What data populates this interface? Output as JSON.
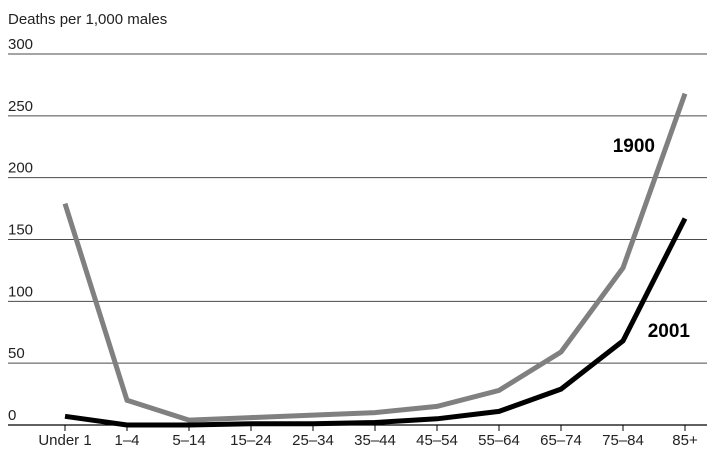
{
  "chart_data": {
    "type": "line",
    "ylabel": "Deaths per 1,000 males",
    "xlabel": "",
    "ylim": [
      0,
      300
    ],
    "yticks": [
      0,
      50,
      100,
      150,
      200,
      250,
      300
    ],
    "categories": [
      "Under 1",
      "1–4",
      "5–14",
      "15–24",
      "25–34",
      "35–44",
      "45–54",
      "55–64",
      "65–74",
      "75–84",
      "85+"
    ],
    "grid": true,
    "series": [
      {
        "name": "1900",
        "color": "#808080",
        "values": [
          179,
          20,
          4,
          6,
          8,
          10,
          15,
          28,
          59,
          127,
          268
        ]
      },
      {
        "name": "2001",
        "color": "#000000",
        "values": [
          7,
          0,
          0,
          1,
          1,
          2,
          5,
          11,
          29,
          68,
          167
        ]
      }
    ]
  }
}
